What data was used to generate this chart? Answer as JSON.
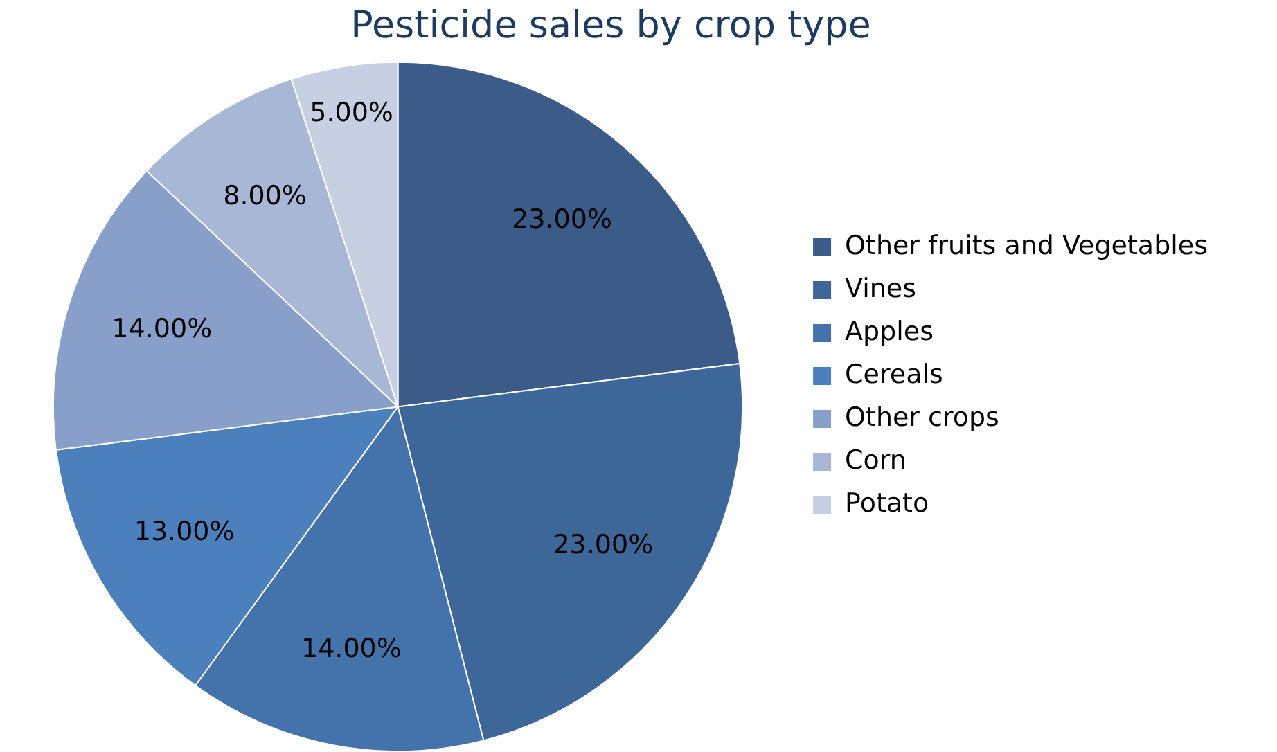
{
  "chart_data": {
    "type": "pie",
    "title": "Pesticide sales by crop type",
    "categories": [
      "Other fruits and Vegetables",
      "Vines",
      "Apples",
      "Cereals",
      "Other crops",
      "Corn",
      "Potato"
    ],
    "values": [
      23,
      23,
      14,
      13,
      14,
      8,
      5
    ],
    "value_labels": [
      "23.00%",
      "23.00%",
      "14.00%",
      "13.00%",
      "14.00%",
      "8.00%",
      "5.00%"
    ],
    "colors": [
      "#3b5c88",
      "#3e6799",
      "#4472ab",
      "#4c80bd",
      "#88a0c9",
      "#a9b7d7",
      "#c6d0e2"
    ],
    "legend": "right"
  }
}
